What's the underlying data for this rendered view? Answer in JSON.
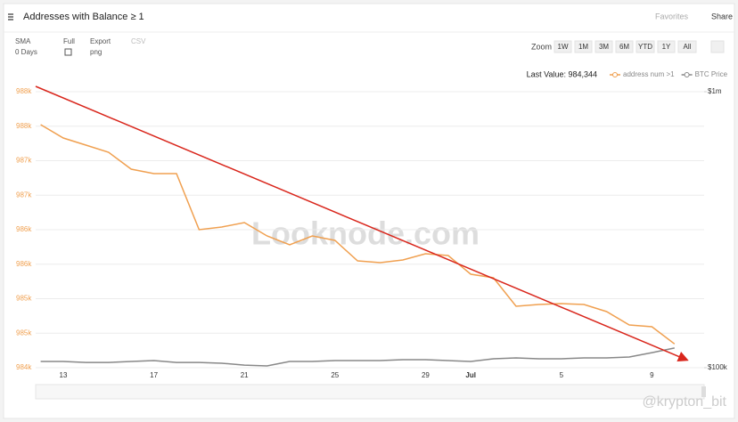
{
  "header": {
    "title": "Addresses with Balance ≥ 1",
    "favorites": "Favorites",
    "share": "Share"
  },
  "toolbar": {
    "sma": "SMA",
    "sma_value": "0 Days",
    "full": "Full",
    "export": "Export",
    "export_value": "png",
    "csv": "CSV",
    "zoom": "Zoom",
    "ranges": [
      "1W",
      "1M",
      "3M",
      "6M",
      "YTD",
      "1Y",
      "All"
    ]
  },
  "watermarks": [
    "Looknode.com",
    "@krypton_bit"
  ],
  "chart_data": {
    "type": "line",
    "last_value": "Last Value: 984,344",
    "categories": [
      null,
      "13",
      null,
      null,
      null,
      "17",
      null,
      null,
      null,
      "21",
      null,
      null,
      null,
      "25",
      null,
      null,
      null,
      "29",
      null,
      "Jul",
      null,
      null,
      null,
      "5",
      null,
      null,
      null,
      "9",
      null
    ],
    "series": [
      {
        "name": "address num >1",
        "color": "#f0a050",
        "axis": "y",
        "values": [
          987523,
          987329,
          987226,
          987123,
          986877,
          986813,
          986813,
          986000,
          986039,
          986103,
          985910,
          985781,
          985910,
          985845,
          985548,
          985523,
          985561,
          985652,
          985626,
          985355,
          985303,
          984890,
          984916,
          984929,
          984916,
          984813,
          984619,
          984594,
          984344
        ]
      },
      {
        "name": "BTC Price",
        "color": "#888888",
        "axis": "y2",
        "values": [
          105300,
          105300,
          104500,
          104500,
          105300,
          106100,
          104500,
          104500,
          103800,
          102200,
          101500,
          105300,
          105300,
          106100,
          106100,
          106100,
          106900,
          106900,
          106100,
          105300,
          107700,
          108500,
          107700,
          107700,
          108500,
          108500,
          109300,
          113400,
          117800
        ]
      }
    ],
    "ylim": [
      984000,
      988000
    ],
    "yticks": [
      {
        "value": 988000,
        "label": "988k"
      },
      {
        "value": 987500,
        "label": "988k"
      },
      {
        "value": 987000,
        "label": "987k"
      },
      {
        "value": 986500,
        "label": "987k"
      },
      {
        "value": 986000,
        "label": "986k"
      },
      {
        "value": 985500,
        "label": "986k"
      },
      {
        "value": 985000,
        "label": "985k"
      },
      {
        "value": 984500,
        "label": "985k"
      },
      {
        "value": 984000,
        "label": "984k"
      }
    ],
    "y2lim": [
      100000,
      1000000
    ],
    "y2_log": true,
    "y2ticks": [
      {
        "value": 1000000,
        "label": "$1m"
      },
      {
        "value": 100000,
        "label": "$100k"
      }
    ],
    "grid": true
  }
}
